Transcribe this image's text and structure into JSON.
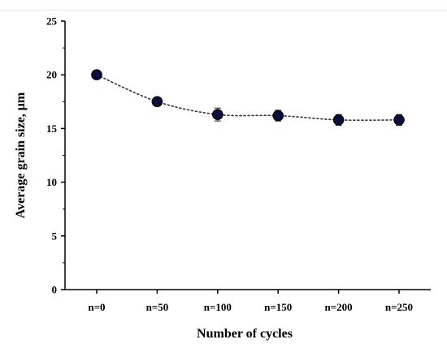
{
  "chart_data": {
    "type": "line",
    "categories": [
      "n=0",
      "n=50",
      "n=100",
      "n=150",
      "n=200",
      "n=250"
    ],
    "series": [
      {
        "values": [
          20.0,
          17.5,
          16.3,
          16.2,
          15.8,
          15.8
        ],
        "error": [
          0.3,
          0.4,
          0.6,
          0.5,
          0.5,
          0.5
        ]
      }
    ],
    "xlabel": "Number of cycles",
    "ylabel": "Average grain size, μm",
    "ylim": [
      0,
      25
    ],
    "yticks": [
      "0",
      "5",
      "10",
      "15",
      "20",
      "25"
    ],
    "grid": false,
    "line_style": "dotted",
    "marker_color": "#0a0f3c",
    "line_color": "#333333"
  }
}
